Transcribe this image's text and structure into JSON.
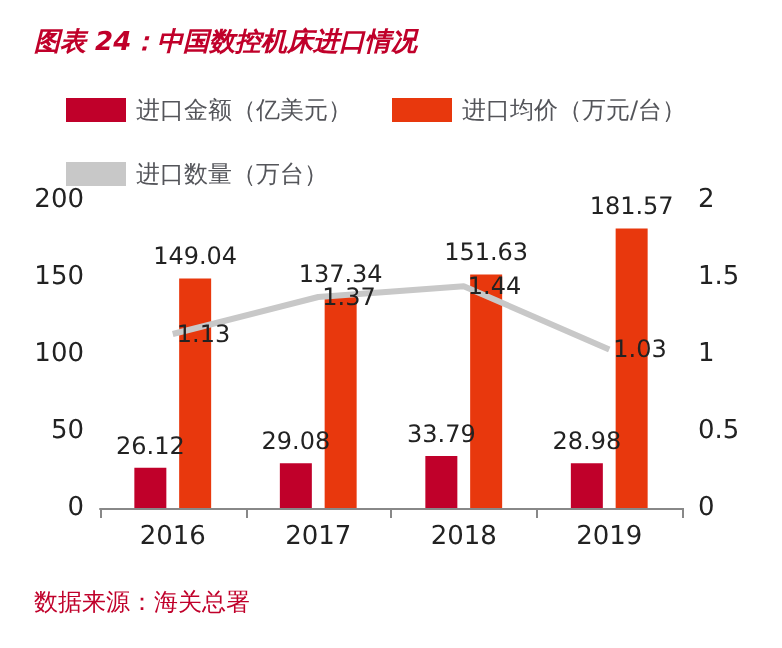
{
  "chart_data": {
    "type": "bar",
    "title": "图表 24：中国数控机床进口情况",
    "categories": [
      "2016",
      "2017",
      "2018",
      "2019"
    ],
    "series": [
      {
        "name": "进口金额（亿美元）",
        "color": "#c0002a",
        "values": [
          26.12,
          29.08,
          33.79,
          28.98
        ]
      },
      {
        "name": "进口均价（万元/台）",
        "color": "#e8380d",
        "values": [
          149.04,
          137.34,
          151.63,
          181.57
        ]
      },
      {
        "name": "进口数量（万台）",
        "type": "line",
        "axis": "y2",
        "color": "#c8c8c8",
        "values": [
          1.13,
          1.37,
          1.44,
          1.03
        ]
      }
    ],
    "ylim": [
      0,
      200
    ],
    "yticks": [
      0,
      50,
      100,
      150,
      200
    ],
    "y2lim": [
      0,
      2
    ],
    "y2ticks": [
      0,
      0.5,
      1,
      1.5,
      2
    ],
    "data_labels": true,
    "grid": false,
    "legend": "top",
    "marker": "none",
    "line_style": "solid",
    "annotations": [
      "数据来源：海关总署"
    ]
  }
}
